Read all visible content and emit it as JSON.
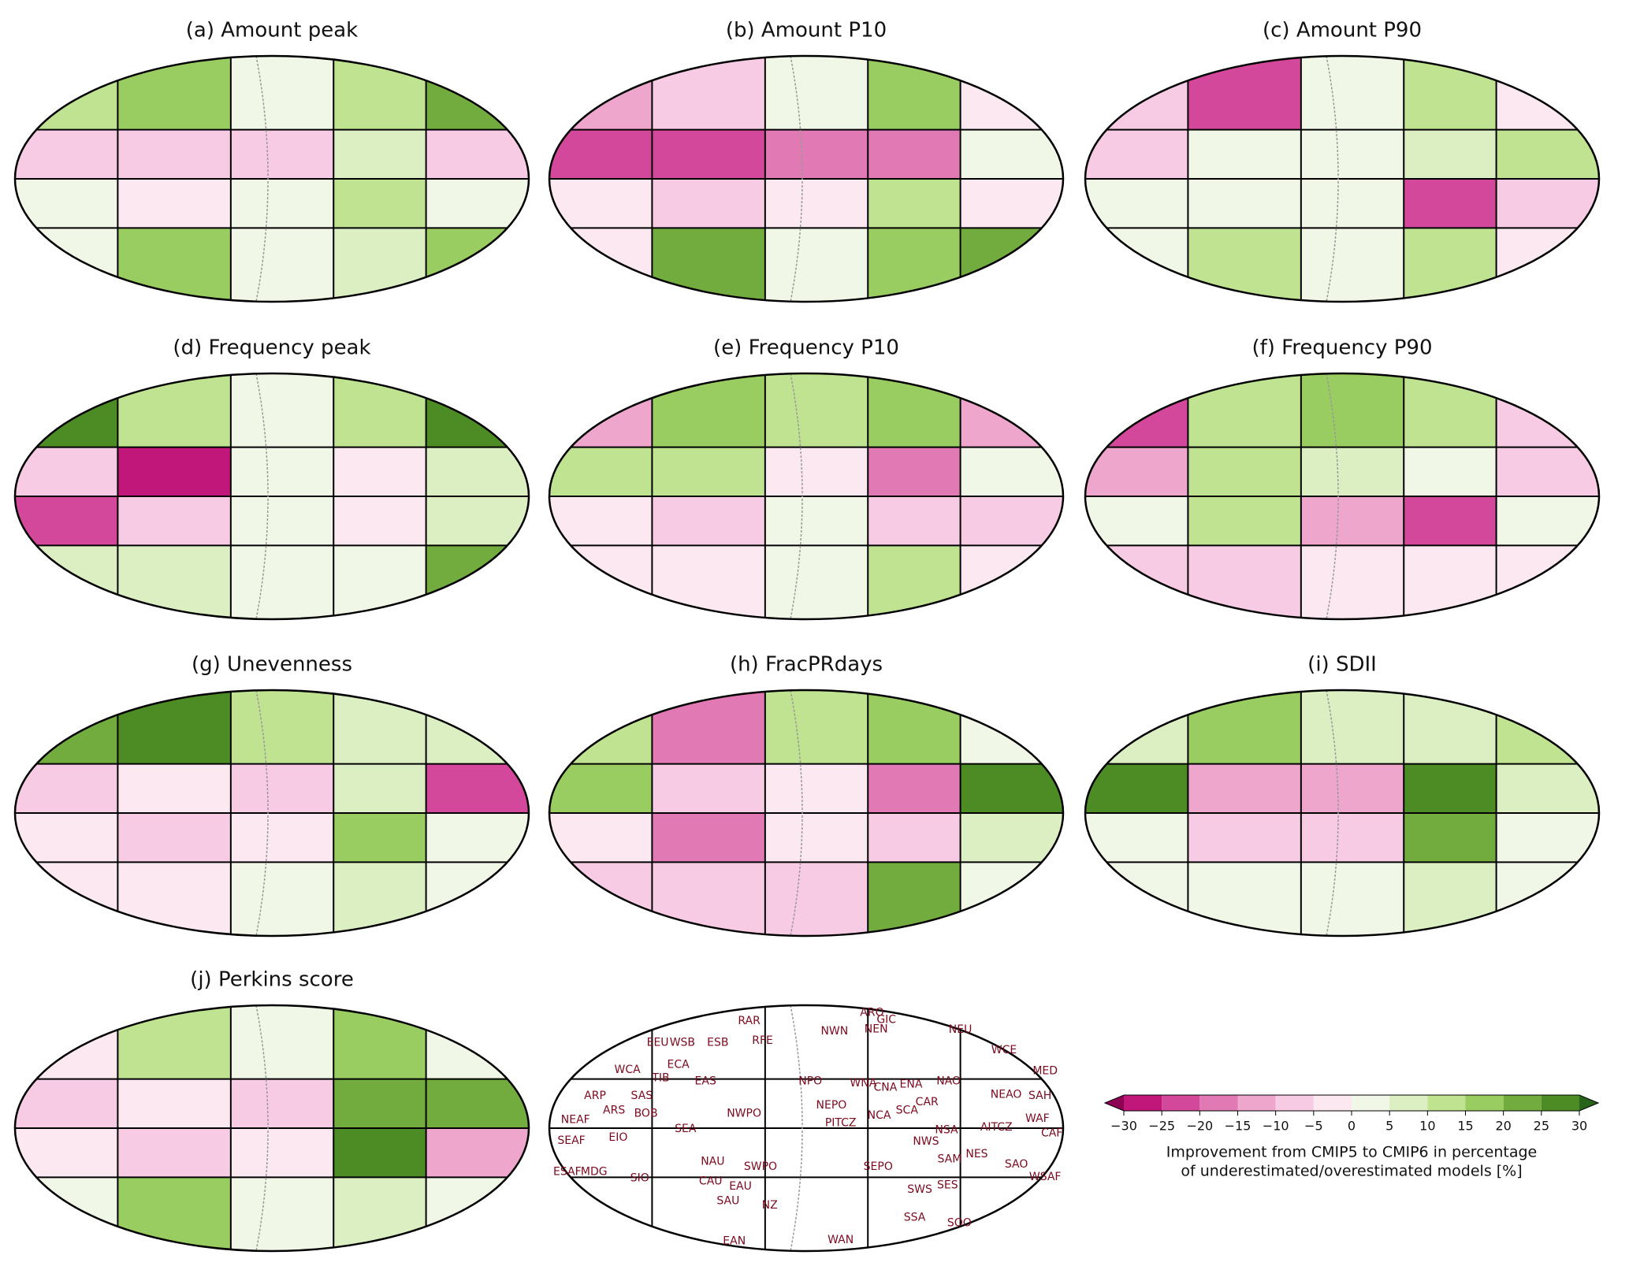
{
  "panels": [
    {
      "title": "(a) Amount peak",
      "values": [
        [
          10,
          15,
          2,
          10,
          20
        ],
        [
          -10,
          -8,
          -10,
          5,
          -8
        ],
        [
          2,
          -5,
          2,
          10,
          2
        ],
        [
          2,
          15,
          2,
          5,
          15
        ]
      ]
    },
    {
      "title": "(b) Amount P10",
      "values": [
        [
          -15,
          -8,
          2,
          15,
          -3
        ],
        [
          -25,
          -25,
          -20,
          -20,
          2
        ],
        [
          -3,
          -8,
          -3,
          10,
          -3
        ],
        [
          -3,
          20,
          2,
          15,
          20
        ]
      ]
    },
    {
      "title": "(c) Amount P90",
      "values": [
        [
          -10,
          -25,
          2,
          10,
          -5
        ],
        [
          -10,
          2,
          2,
          5,
          10
        ],
        [
          2,
          2,
          2,
          -25,
          -8
        ],
        [
          2,
          10,
          2,
          10,
          -5
        ]
      ]
    },
    {
      "title": "(d) Frequency peak",
      "values": [
        [
          25,
          10,
          2,
          10,
          25
        ],
        [
          -10,
          -30,
          2,
          -5,
          5
        ],
        [
          -25,
          -10,
          2,
          -5,
          5
        ],
        [
          5,
          5,
          2,
          3,
          20
        ]
      ]
    },
    {
      "title": "(e) Frequency P10",
      "values": [
        [
          -15,
          15,
          10,
          15,
          -15
        ],
        [
          10,
          10,
          -5,
          -20,
          2
        ],
        [
          -3,
          -8,
          2,
          -10,
          -8
        ],
        [
          -3,
          -3,
          2,
          10,
          -3
        ]
      ]
    },
    {
      "title": "(f) Frequency P90",
      "values": [
        [
          -25,
          10,
          15,
          10,
          -8
        ],
        [
          -15,
          10,
          5,
          2,
          -8
        ],
        [
          2,
          10,
          -15,
          -25,
          2
        ],
        [
          -8,
          -8,
          -5,
          -5,
          -5
        ]
      ]
    },
    {
      "title": "(g) Unevenness",
      "values": [
        [
          20,
          25,
          10,
          5,
          5
        ],
        [
          -10,
          -5,
          -10,
          5,
          -25
        ],
        [
          -3,
          -10,
          -3,
          15,
          2
        ],
        [
          -3,
          -3,
          2,
          5,
          2
        ]
      ]
    },
    {
      "title": "(h) FracPRdays",
      "values": [
        [
          10,
          -20,
          10,
          15,
          2
        ],
        [
          15,
          -10,
          -5,
          -20,
          25
        ],
        [
          -3,
          -20,
          -5,
          -10,
          5
        ],
        [
          -10,
          -10,
          -8,
          20,
          2
        ]
      ]
    },
    {
      "title": "(i) SDII",
      "values": [
        [
          5,
          15,
          5,
          5,
          10
        ],
        [
          25,
          -15,
          -15,
          25,
          5
        ],
        [
          2,
          -10,
          -10,
          20,
          2
        ],
        [
          2,
          2,
          2,
          5,
          2
        ]
      ]
    },
    {
      "title": "(j) Perkins score",
      "values": [
        [
          -3,
          10,
          2,
          15,
          2
        ],
        [
          -10,
          -5,
          -10,
          20,
          20
        ],
        [
          -5,
          -10,
          -5,
          25,
          -15
        ],
        [
          2,
          15,
          2,
          5,
          2
        ]
      ]
    }
  ],
  "region_map": {
    "regions": [
      "RAR",
      "ARO",
      "GIC",
      "NEU",
      "EEU",
      "WSB",
      "ESB",
      "RFE",
      "NWN",
      "NEN",
      "WCE",
      "MED",
      "WCA",
      "ECA",
      "TIB",
      "EAS",
      "NPO",
      "WNA",
      "CNA",
      "ENA",
      "NAO",
      "ARP",
      "SAS",
      "BOB",
      "ARS",
      "NEPO",
      "NCA",
      "SAH",
      "NEAF",
      "SEA",
      "NWPO",
      "PITCZ",
      "SCA",
      "CAR",
      "NEAO",
      "AITCZ",
      "WAF",
      "CAF",
      "SEAF",
      "EIO",
      "NSA",
      "NWS",
      "SAM",
      "NES",
      "ESAF",
      "MDG",
      "SIO",
      "NAU",
      "SWPO",
      "SEPO",
      "SAO",
      "WSAF",
      "CAU",
      "EAU",
      "SES",
      "SWS",
      "SAU",
      "NZ",
      "SSA",
      "SOO",
      "EAN",
      "WAN"
    ]
  },
  "colorbar": {
    "ticks": [
      {
        "value": -30,
        "label": "−30"
      },
      {
        "value": -25,
        "label": "−25"
      },
      {
        "value": -20,
        "label": "−20"
      },
      {
        "value": -15,
        "label": "−15"
      },
      {
        "value": -10,
        "label": "−10"
      },
      {
        "value": -5,
        "label": "−5"
      },
      0,
      5,
      10,
      15,
      20,
      25,
      30
    ],
    "colors": [
      "#c2177a",
      "#d3489a",
      "#e17ab4",
      "#eea6cd",
      "#f6cbe3",
      "#fbe8f1",
      "#f1f7e6",
      "#dcefc2",
      "#bfe391",
      "#9acd61",
      "#72ab3e",
      "#4d8c24"
    ],
    "under_color": "#8e0152",
    "over_color": "#276419",
    "label": [
      "Improvement from CMIP5 to CMIP6 in percentage",
      "of underestimated/overestimated models [%]"
    ]
  }
}
